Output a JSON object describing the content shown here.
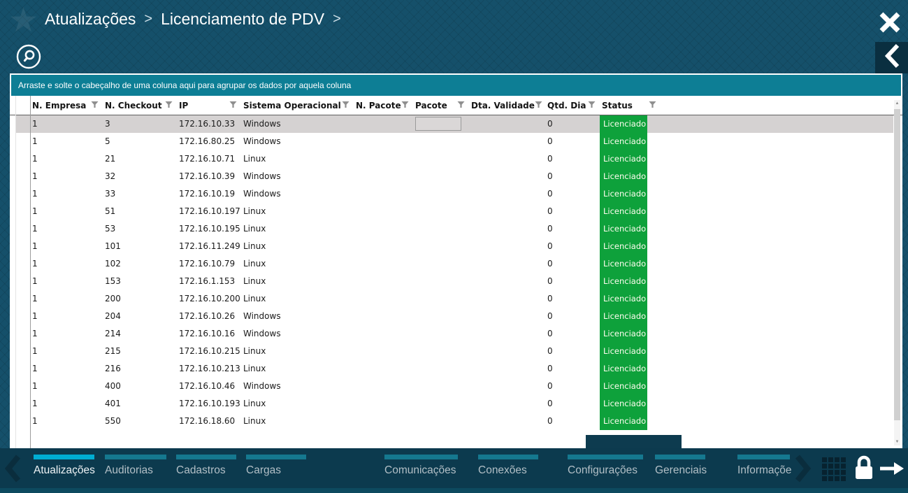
{
  "window": {
    "breadcrumb": {
      "items": [
        "Atualizações",
        "Licenciamento de PDV"
      ],
      "separator": ">"
    }
  },
  "grid": {
    "group_hint": "Arraste e solte o cabeçalho de uma coluna aqui para agrupar os dados por aquela coluna",
    "columns": [
      {
        "key": "empresa",
        "label": "N. Empresa"
      },
      {
        "key": "checkout",
        "label": "N. Checkout"
      },
      {
        "key": "ip",
        "label": "IP"
      },
      {
        "key": "so",
        "label": "Sistema Operacional"
      },
      {
        "key": "n_pacote",
        "label": "N. Pacote"
      },
      {
        "key": "pacote",
        "label": "Pacote"
      },
      {
        "key": "validade",
        "label": "Dta. Validade"
      },
      {
        "key": "qtd",
        "label": "Qtd. Dia"
      },
      {
        "key": "status",
        "label": "Status"
      }
    ],
    "rows": [
      {
        "empresa": "1",
        "checkout": "3",
        "ip": "172.16.10.33",
        "so": "Windows",
        "n_pacote": "",
        "pacote": "",
        "validade": "",
        "qtd": "0",
        "status": "Licenciado",
        "selected": true
      },
      {
        "empresa": "1",
        "checkout": "5",
        "ip": "172.16.80.25",
        "so": "Windows",
        "n_pacote": "",
        "pacote": "",
        "validade": "",
        "qtd": "0",
        "status": "Licenciado",
        "selected": false
      },
      {
        "empresa": "1",
        "checkout": "21",
        "ip": "172.16.10.71",
        "so": "Linux",
        "n_pacote": "",
        "pacote": "",
        "validade": "",
        "qtd": "0",
        "status": "Licenciado",
        "selected": false
      },
      {
        "empresa": "1",
        "checkout": "32",
        "ip": "172.16.10.39",
        "so": "Windows",
        "n_pacote": "",
        "pacote": "",
        "validade": "",
        "qtd": "0",
        "status": "Licenciado",
        "selected": false
      },
      {
        "empresa": "1",
        "checkout": "33",
        "ip": "172.16.10.19",
        "so": "Windows",
        "n_pacote": "",
        "pacote": "",
        "validade": "",
        "qtd": "0",
        "status": "Licenciado",
        "selected": false
      },
      {
        "empresa": "1",
        "checkout": "51",
        "ip": "172.16.10.197",
        "so": "Linux",
        "n_pacote": "",
        "pacote": "",
        "validade": "",
        "qtd": "0",
        "status": "Licenciado",
        "selected": false
      },
      {
        "empresa": "1",
        "checkout": "53",
        "ip": "172.16.10.195",
        "so": "Linux",
        "n_pacote": "",
        "pacote": "",
        "validade": "",
        "qtd": "0",
        "status": "Licenciado",
        "selected": false
      },
      {
        "empresa": "1",
        "checkout": "101",
        "ip": "172.16.11.249",
        "so": "Linux",
        "n_pacote": "",
        "pacote": "",
        "validade": "",
        "qtd": "0",
        "status": "Licenciado",
        "selected": false
      },
      {
        "empresa": "1",
        "checkout": "102",
        "ip": "172.16.10.79",
        "so": "Linux",
        "n_pacote": "",
        "pacote": "",
        "validade": "",
        "qtd": "0",
        "status": "Licenciado",
        "selected": false
      },
      {
        "empresa": "1",
        "checkout": "153",
        "ip": "172.16.1.153",
        "so": "Linux",
        "n_pacote": "",
        "pacote": "",
        "validade": "",
        "qtd": "0",
        "status": "Licenciado",
        "selected": false
      },
      {
        "empresa": "1",
        "checkout": "200",
        "ip": "172.16.10.200",
        "so": "Linux",
        "n_pacote": "",
        "pacote": "",
        "validade": "",
        "qtd": "0",
        "status": "Licenciado",
        "selected": false
      },
      {
        "empresa": "1",
        "checkout": "204",
        "ip": "172.16.10.26",
        "so": "Windows",
        "n_pacote": "",
        "pacote": "",
        "validade": "",
        "qtd": "0",
        "status": "Licenciado",
        "selected": false
      },
      {
        "empresa": "1",
        "checkout": "214",
        "ip": "172.16.10.16",
        "so": "Windows",
        "n_pacote": "",
        "pacote": "",
        "validade": "",
        "qtd": "0",
        "status": "Licenciado",
        "selected": false
      },
      {
        "empresa": "1",
        "checkout": "215",
        "ip": "172.16.10.215",
        "so": "Linux",
        "n_pacote": "",
        "pacote": "",
        "validade": "",
        "qtd": "0",
        "status": "Licenciado",
        "selected": false
      },
      {
        "empresa": "1",
        "checkout": "216",
        "ip": "172.16.10.213",
        "so": "Linux",
        "n_pacote": "",
        "pacote": "",
        "validade": "",
        "qtd": "0",
        "status": "Licenciado",
        "selected": false
      },
      {
        "empresa": "1",
        "checkout": "400",
        "ip": "172.16.10.46",
        "so": "Windows",
        "n_pacote": "",
        "pacote": "",
        "validade": "",
        "qtd": "0",
        "status": "Licenciado",
        "selected": false
      },
      {
        "empresa": "1",
        "checkout": "401",
        "ip": "172.16.10.193",
        "so": "Linux",
        "n_pacote": "",
        "pacote": "",
        "validade": "",
        "qtd": "0",
        "status": "Licenciado",
        "selected": false
      },
      {
        "empresa": "1",
        "checkout": "550",
        "ip": "172.16.18.60",
        "so": "Linux",
        "n_pacote": "",
        "pacote": "",
        "validade": "",
        "qtd": "0",
        "status": "Licenciado",
        "selected": false
      }
    ]
  },
  "nav": {
    "tabs": [
      {
        "label": "Atualizações",
        "active": true
      },
      {
        "label": "Auditorias",
        "active": false
      },
      {
        "label": "Cadastros",
        "active": false
      },
      {
        "label": "Cargas",
        "active": false
      },
      {
        "label": "Comunicações",
        "active": false
      },
      {
        "label": "Conexões",
        "active": false
      },
      {
        "label": "Configurações",
        "active": false
      },
      {
        "label": "Gerenciais",
        "active": false
      },
      {
        "label": "Informações",
        "active": false
      }
    ]
  },
  "colors": {
    "header_bg": "#15506a",
    "group_bar": "#0d7e95",
    "nav_bg": "#0c3a4e",
    "badge_green": "#0ea13b",
    "tab_active": "#00add3",
    "tab_inactive": "#15788f",
    "selected_row": "#d5d2d2",
    "bottom_strip": "#0d4a5f"
  }
}
